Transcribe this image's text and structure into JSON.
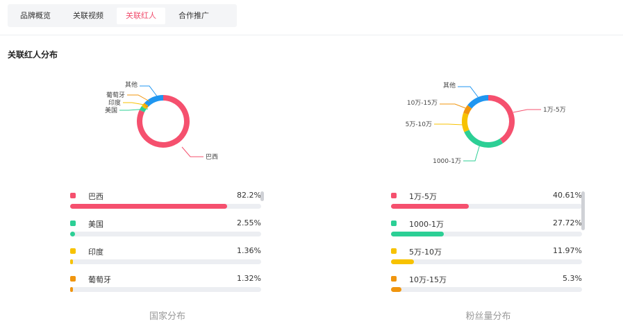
{
  "tabs": [
    {
      "label": "品牌概览",
      "active": false
    },
    {
      "label": "关联视频",
      "active": false
    },
    {
      "label": "关联红人",
      "active": true
    },
    {
      "label": "合作推广",
      "active": false
    }
  ],
  "section_title": "关联红人分布",
  "country": {
    "footer": "国家分布",
    "items": [
      {
        "name": "巴西",
        "pct_label": "82.2%",
        "value": 82.2,
        "color": "#f5506e"
      },
      {
        "name": "美国",
        "pct_label": "2.55%",
        "value": 2.55,
        "color": "#2ccf95"
      },
      {
        "name": "印度",
        "pct_label": "1.36%",
        "value": 1.36,
        "color": "#f7c200"
      },
      {
        "name": "葡萄牙",
        "pct_label": "1.32%",
        "value": 1.32,
        "color": "#f0950e"
      }
    ],
    "donut_labels": {
      "巴西": "巴西",
      "美国": "美国",
      "印度": "印度",
      "葡萄牙": "葡萄牙",
      "其他": "其他"
    },
    "other": {
      "name": "其他",
      "value": 12.57,
      "color": "#1f96f0"
    }
  },
  "fans": {
    "footer": "粉丝量分布",
    "items": [
      {
        "name": "1万-5万",
        "pct_label": "40.61%",
        "value": 40.61,
        "color": "#f5506e"
      },
      {
        "name": "1000-1万",
        "pct_label": "27.72%",
        "value": 27.72,
        "color": "#2ccf95"
      },
      {
        "name": "5万-10万",
        "pct_label": "11.97%",
        "value": 11.97,
        "color": "#f7c200"
      },
      {
        "name": "10万-15万",
        "pct_label": "5.3%",
        "value": 5.3,
        "color": "#f0950e"
      }
    ],
    "other": {
      "name": "其他",
      "value": 14.4,
      "color": "#1f96f0"
    }
  }
}
